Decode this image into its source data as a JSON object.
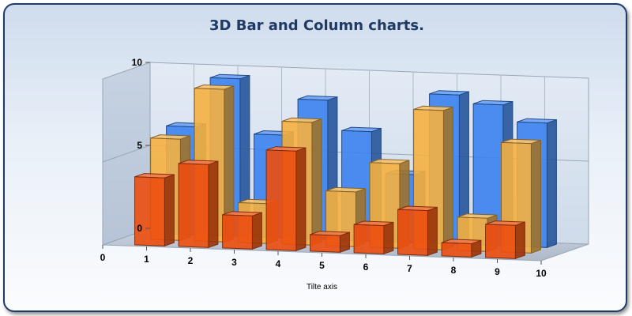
{
  "chart_data": {
    "type": "bar",
    "title": "3D Bar and Column charts.",
    "xlabel": "Tilte axis",
    "ylabel": "",
    "xlim": [
      0,
      10
    ],
    "ylim": [
      0,
      10
    ],
    "x_ticks": [
      "0",
      "1",
      "2",
      "3",
      "4",
      "5",
      "6",
      "7",
      "8",
      "9",
      "10"
    ],
    "y_ticks": [
      "0",
      "5",
      "10"
    ],
    "grid": true,
    "x": [
      1,
      2,
      3,
      4,
      5,
      6,
      7,
      8,
      9
    ],
    "series": [
      {
        "values": [
          6.5,
          9.5,
          6.2,
          8.4,
          6.6,
          4.1,
          9.0,
          8.5,
          7.5
        ]
      },
      {
        "values": [
          6.1,
          9.2,
          2.4,
          7.4,
          3.3,
          5.1,
          8.4,
          2.0,
          6.6
        ]
      },
      {
        "values": [
          4.1,
          5.0,
          2.0,
          6.0,
          1.0,
          1.7,
          2.7,
          0.8,
          2.0
        ]
      }
    ],
    "colors": [
      "#3b82f0",
      "#f5b040",
      "#ec4e0e"
    ]
  }
}
